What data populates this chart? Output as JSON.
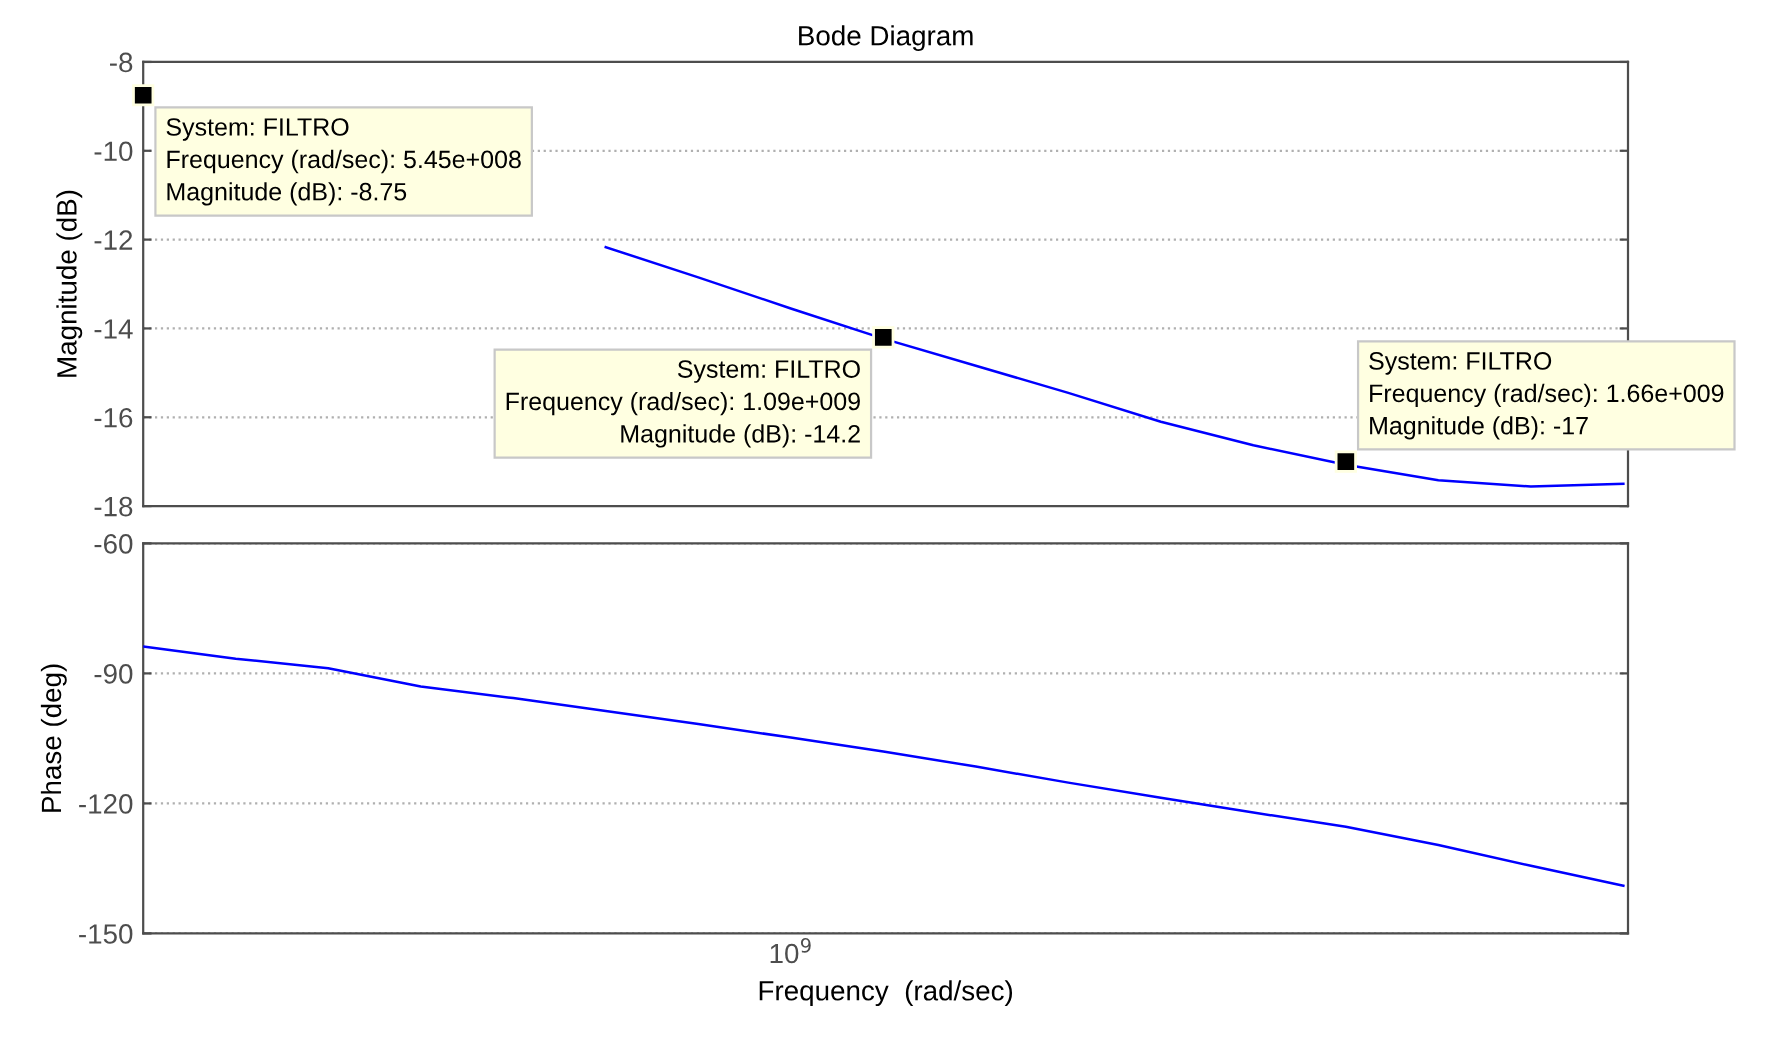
{
  "chart_data": [
    {
      "type": "line",
      "title": "Bode Diagram",
      "ylabel": "Magnitude (dB)",
      "categories": [
        null,
        null,
        null,
        null,
        null,
        null,
        null,
        null,
        null,
        null,
        null,
        null,
        null,
        null,
        null,
        null,
        null
      ],
      "series": [
        {
          "color": "#0000ff",
          "values": [
            null,
            null,
            null,
            null,
            null,
            -12.17,
            -12.85,
            -13.55,
            -14.23,
            -14.84,
            -15.45,
            -16.1,
            -16.63,
            -17.07,
            -17.42,
            -17.56,
            -17.5
          ]
        },
        {
          "type": "scatter",
          "color": "#000000",
          "marker": "square",
          "values": [
            -8.75,
            null,
            null,
            null,
            null,
            null,
            null,
            null,
            -14.2,
            null,
            null,
            null,
            null,
            -17,
            null,
            null,
            null
          ]
        }
      ],
      "ylim": [
        -18,
        -8
      ],
      "yticks": [
        -18,
        -16,
        -14,
        -12,
        -10,
        -8
      ],
      "tick_labels": "y",
      "grid": "y",
      "legend": false,
      "marker": "none",
      "line_style": "solid",
      "annotations": [
        "System: FILTRO\nFrequency (rad/sec): 5.45e+008\nMagnitude (dB): -8.75",
        "System: FILTRO\nFrequency (rad/sec): 1.09e+009\nMagnitude (dB): -14.2",
        "System: FILTRO\nFrequency (rad/sec): 1.66e+009\nMagnitude (dB): -17"
      ]
    },
    {
      "type": "line",
      "ylabel": "Phase (deg)",
      "xlabel": "Frequency  (rad/sec)",
      "categories": [
        null,
        null,
        null,
        null,
        null,
        null,
        null,
        "10$^{9}$",
        null,
        null,
        null,
        null,
        null,
        null,
        null,
        null,
        null
      ],
      "series": [
        {
          "color": "#0000ff",
          "values": [
            -83.8,
            -86.6,
            -88.8,
            -93.0,
            -95.7,
            -98.7,
            -101.7,
            -104.8,
            -108.0,
            -111.5,
            -115.2,
            -118.7,
            -122.1,
            -125.4,
            -129.6,
            -134.4,
            -139.0
          ]
        }
      ],
      "ylim": [
        -150,
        -60
      ],
      "yticks": [
        -150,
        -120,
        -90,
        -60
      ],
      "grid": "y",
      "legend": false,
      "marker": "none",
      "line_style": "solid"
    }
  ]
}
